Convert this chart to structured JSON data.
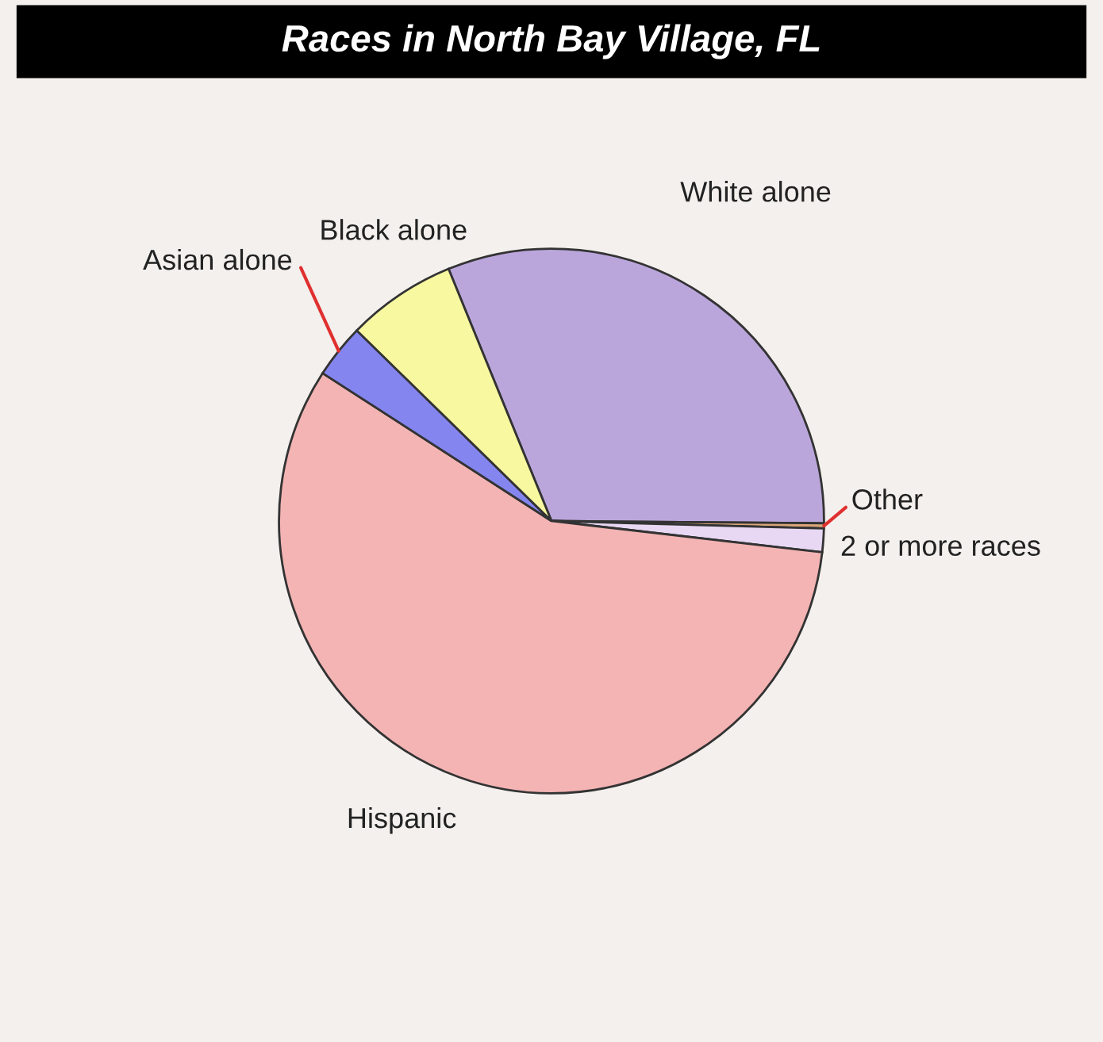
{
  "chart_data": {
    "type": "pie",
    "title": "Races in North Bay Village, FL",
    "categories": [
      "White alone",
      "Other",
      "2 or more races",
      "Hispanic",
      "Asian alone",
      "Black alone"
    ],
    "values": [
      31.3,
      0.3,
      1.4,
      57.3,
      3.2,
      6.5
    ],
    "colors": [
      "#bba6dc",
      "#d9a57a",
      "#e8d8f4",
      "#f4b4b4",
      "#8585f0",
      "#f8f8a0"
    ]
  }
}
